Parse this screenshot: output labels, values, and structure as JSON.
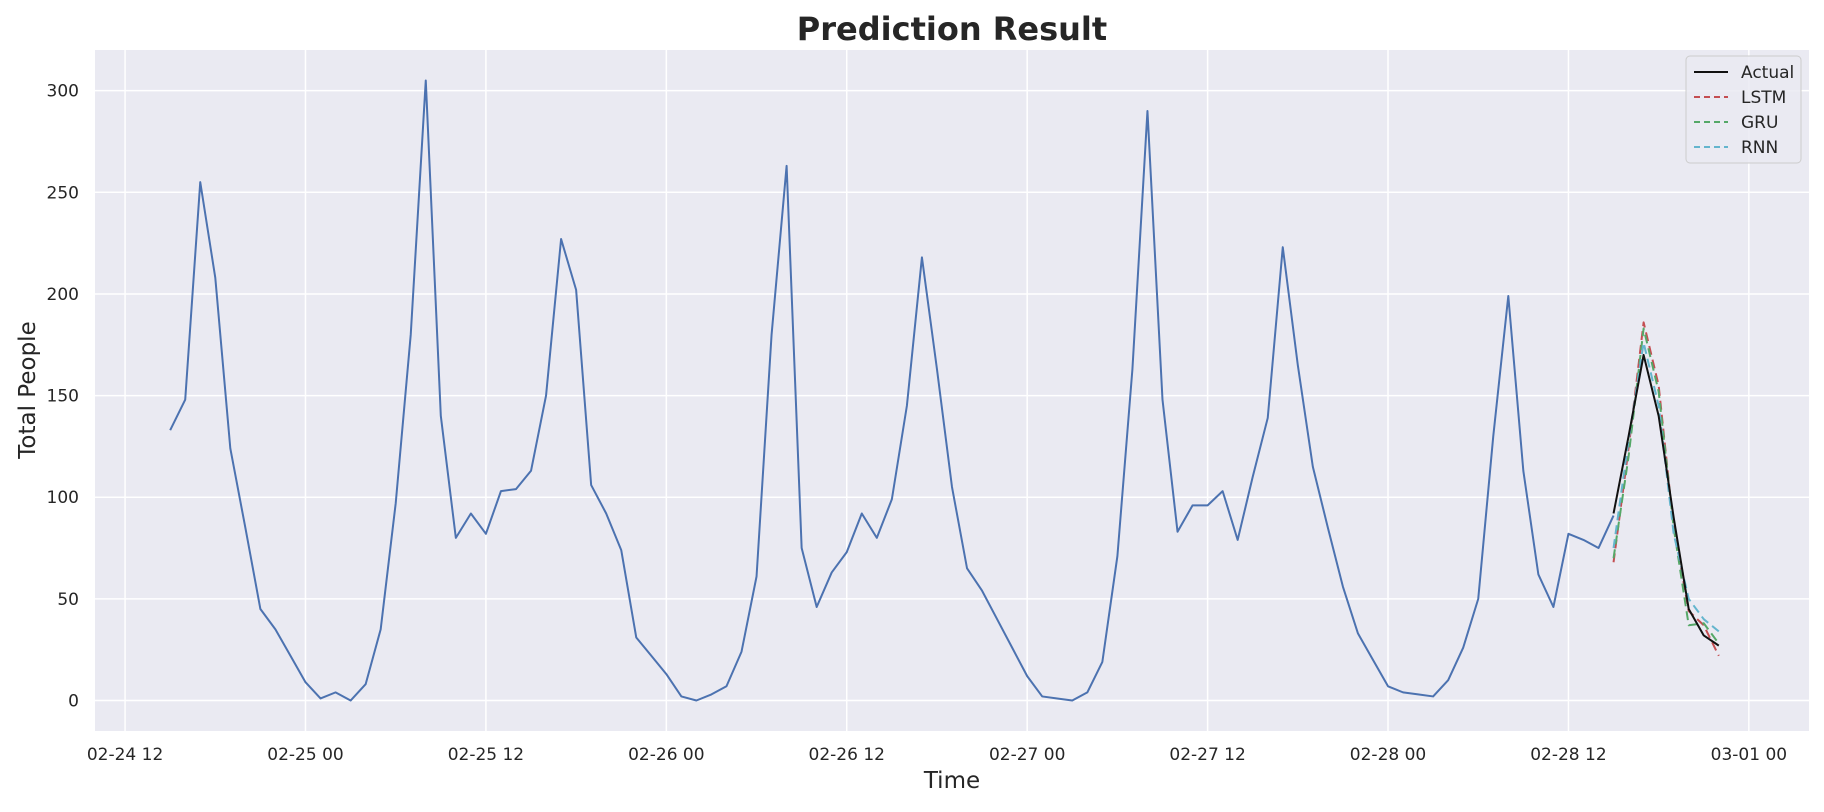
{
  "chart_data": {
    "type": "line",
    "title": "Prediction Result",
    "xlabel": "Time",
    "ylabel": "Total People",
    "xlim": [
      "2022-02-24 10:00",
      "2022-03-01 04:00"
    ],
    "ylim": [
      -15,
      320
    ],
    "yticks": [
      0,
      50,
      100,
      150,
      200,
      250,
      300
    ],
    "xticks": [
      {
        "t": "2022-02-24 12:00",
        "label": "02-24 12"
      },
      {
        "t": "2022-02-25 00:00",
        "label": "02-25 00"
      },
      {
        "t": "2022-02-25 12:00",
        "label": "02-25 12"
      },
      {
        "t": "2022-02-26 00:00",
        "label": "02-26 00"
      },
      {
        "t": "2022-02-26 12:00",
        "label": "02-26 12"
      },
      {
        "t": "2022-02-27 00:00",
        "label": "02-27 00"
      },
      {
        "t": "2022-02-27 12:00",
        "label": "02-27 12"
      },
      {
        "t": "2022-02-28 00:00",
        "label": "02-28 00"
      },
      {
        "t": "2022-02-28 12:00",
        "label": "02-28 12"
      },
      {
        "t": "2022-03-01 00:00",
        "label": "03-01 00"
      }
    ],
    "grid": true,
    "legend_position": "top-right",
    "history": {
      "color": "#4c72b0",
      "start": "2022-02-24 15:00",
      "step_hours": 1,
      "values": [
        133,
        148,
        255,
        208,
        124,
        85,
        45,
        35,
        22,
        9,
        1,
        4,
        0,
        8,
        35,
        97,
        180,
        305,
        140,
        80,
        92,
        82,
        103,
        104,
        113,
        150,
        227,
        202,
        106,
        92,
        74,
        31,
        22,
        13,
        2,
        0,
        3,
        7,
        24,
        61,
        180,
        263,
        75,
        46,
        63,
        73,
        92,
        80,
        99,
        145,
        218,
        163,
        105,
        65,
        54,
        40,
        26,
        12,
        2,
        1,
        0,
        4,
        19,
        71,
        163,
        290,
        148,
        83,
        96,
        96,
        103,
        79,
        110,
        139,
        223,
        165,
        115,
        85,
        56,
        33,
        20,
        7,
        4,
        3,
        2,
        10,
        26,
        50,
        130,
        199,
        113,
        62,
        46,
        82,
        79,
        75,
        91
      ]
    },
    "predictions": {
      "start": "2022-02-28 15:00",
      "step_hours": 1,
      "series": [
        {
          "name": "Actual",
          "color": "#111111",
          "dash": "",
          "values": [
            92,
            130,
            170,
            140,
            90,
            45,
            32,
            27
          ]
        },
        {
          "name": "LSTM",
          "color": "#c44e52",
          "dash": "9,5",
          "values": [
            68,
            124,
            186,
            155,
            85,
            44,
            37,
            22
          ]
        },
        {
          "name": "GRU",
          "color": "#55a868",
          "dash": "9,5",
          "values": [
            70,
            120,
            183,
            152,
            85,
            37,
            38,
            28
          ]
        },
        {
          "name": "RNN",
          "color": "#64b5cd",
          "dash": "9,5",
          "values": [
            75,
            128,
            176,
            145,
            82,
            50,
            40,
            34
          ]
        }
      ]
    },
    "colors": {
      "plot_bg": "#eaeaf2",
      "grid": "#ffffff",
      "text": "#262626"
    }
  }
}
